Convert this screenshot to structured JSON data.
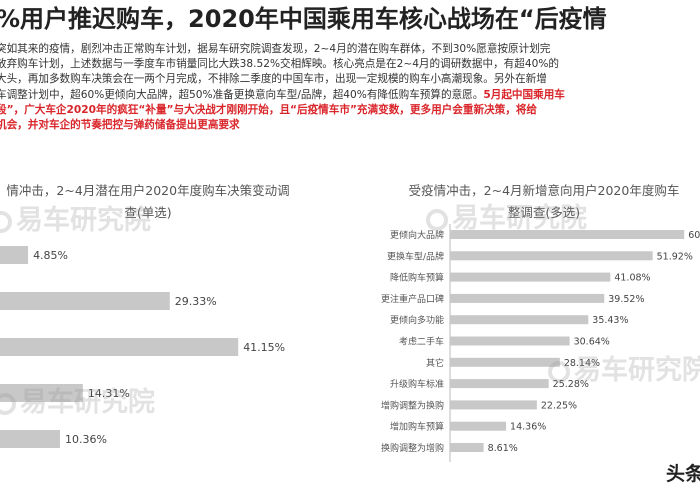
{
  "headline": "%用户推迟购车，2020年中国乘用车核心战场在“后疫情",
  "paragraph": {
    "lines": [
      "突如其来的疫情，剧烈冲击正常购车计划，据易车研究院调查发现，2~4月的潜在购车群体，不到30%愿意按原计划完",
      "放弃购车计划，上述数据与一季度车市销量同比大跌38.52%交相辉映。核心亮点是在2~4月的调研数据中，有超40%的",
      "大头，再加多数购车决策会在一两个月完成，不排除二季度的中国车市，出现一定规模的购车小高潮现象。另外在新增",
      "车调整计划中，超60%更倾向大品牌，超50%准备更换意向车型/品牌，超40%有降低购车预算的意愿。"
    ],
    "red_tail": "5月起中国乘用车",
    "red_line2_a": "段”，",
    "red_line2_b": "广大车企2020年的疯狂“补量”与大决战才刚刚开始，且“后疫情车市”充满变数，更多用户会重新决策，将给",
    "red_line3": "机会，并对车企的节奏把控与弹药储备提出更高要求"
  },
  "watermark": "易车研究院",
  "corner_brand": "头条",
  "chart_data": [
    {
      "type": "bar",
      "orientation": "horizontal",
      "title_line1": "情冲击，2~4月潜在用户2020年度购车决策变动调",
      "title_line2": "查(单选)",
      "categories": [
        "",
        "",
        "",
        "",
        ""
      ],
      "values": [
        4.85,
        29.33,
        41.15,
        14.31,
        10.36
      ],
      "value_labels": [
        "4.85%",
        "29.33%",
        "41.15%",
        "14.31%",
        "10.36%"
      ],
      "bar_color": "#c8c8c8",
      "xlim": [
        0,
        45
      ]
    },
    {
      "type": "bar",
      "orientation": "horizontal",
      "title_line1": "受疫情冲击，2~4月新增意向用户2020年度购车",
      "title_line2": "整调查(多选)",
      "categories": [
        "更倾向大品牌",
        "更换车型/品牌",
        "降低购车预算",
        "更注重产品口碑",
        "更倾向多功能",
        "考虑二手车",
        "其它",
        "升级购车标准",
        "增购调整为换购",
        "增加购车预算",
        "换购调整为增购"
      ],
      "values": [
        60,
        51.92,
        41.08,
        39.52,
        35.43,
        30.64,
        28.14,
        25.28,
        22.25,
        14.36,
        8.61
      ],
      "value_labels": [
        "60",
        "51.92%",
        "41.08%",
        "39.52%",
        "35.43%",
        "30.64%",
        "28.14%",
        "25.28%",
        "22.25%",
        "14.36%",
        "8.61%"
      ],
      "bar_color": "#c8c8c8",
      "xlim": [
        0,
        62
      ]
    }
  ]
}
